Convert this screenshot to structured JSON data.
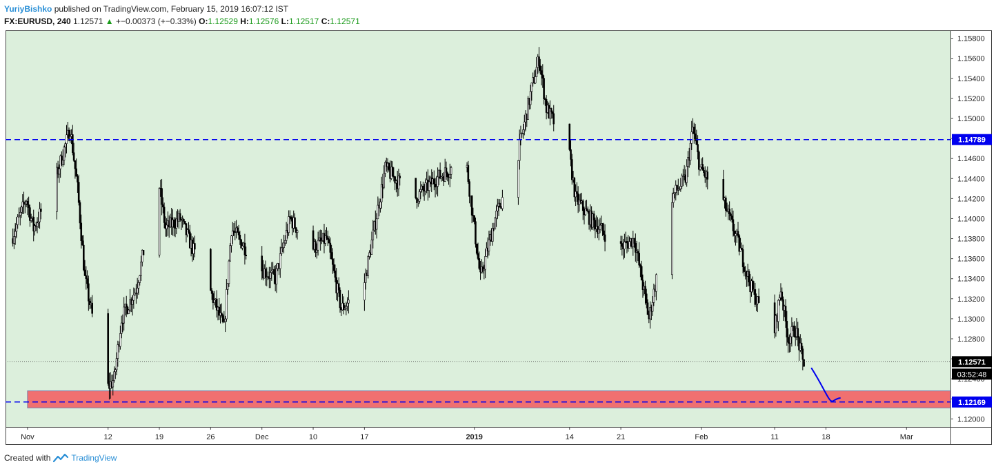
{
  "header": {
    "author": "YuriyBishko",
    "published_text": "published on TradingView.com, February 15, 2019 16:07:12 IST",
    "symbol": "FX:EURUSD",
    "interval": "240",
    "last": "1.12571",
    "change": "+−0.00373 (+−0.33%)",
    "o_label": "O:",
    "o": "1.12529",
    "h_label": "H:",
    "h": "1.12576",
    "l_label": "L:",
    "l": "1.12517",
    "c_label": "C:",
    "c": "1.12571"
  },
  "footer": {
    "created_with": "Created with",
    "brand": "TradingView"
  },
  "colors": {
    "chart_bg": "#dcefdc",
    "candle": "#000000",
    "resistance_line": "#0000ee",
    "support_zone": "#f07070",
    "projection": "#0000ee"
  },
  "chart_data": {
    "type": "candlestick",
    "symbol": "FX:EURUSD",
    "interval": "240",
    "ylim": [
      1.1192,
      1.1588
    ],
    "y_ticks": [
      "1.12000",
      "1.12200",
      "1.12400",
      "1.12600",
      "1.12800",
      "1.13000",
      "1.13200",
      "1.13400",
      "1.13600",
      "1.13800",
      "1.14000",
      "1.14200",
      "1.14400",
      "1.14600",
      "1.14800",
      "1.15000",
      "1.15200",
      "1.15400",
      "1.15600",
      "1.15800"
    ],
    "x_ticks": [
      {
        "label": "Nov",
        "date": "2018-11-01",
        "bold": false
      },
      {
        "label": "12",
        "date": "2018-11-12",
        "bold": false
      },
      {
        "label": "19",
        "date": "2018-11-19",
        "bold": false
      },
      {
        "label": "26",
        "date": "2018-11-26",
        "bold": false
      },
      {
        "label": "Dec",
        "date": "2018-12-03",
        "bold": false
      },
      {
        "label": "10",
        "date": "2018-12-10",
        "bold": false
      },
      {
        "label": "17",
        "date": "2018-12-17",
        "bold": false
      },
      {
        "label": "2019",
        "date": "2019-01-01",
        "bold": true
      },
      {
        "label": "14",
        "date": "2019-01-14",
        "bold": false
      },
      {
        "label": "21",
        "date": "2019-01-21",
        "bold": false
      },
      {
        "label": "Feb",
        "date": "2019-02-01",
        "bold": false
      },
      {
        "label": "11",
        "date": "2019-02-11",
        "bold": false
      },
      {
        "label": "18",
        "date": "2019-02-18",
        "bold": false
      },
      {
        "label": "Mar",
        "date": "2019-03-01",
        "bold": false
      }
    ],
    "price_path": [
      [
        "2018-10-30",
        1.138
      ],
      [
        "2018-11-01",
        1.142
      ],
      [
        "2018-11-02",
        1.139
      ],
      [
        "2018-11-05",
        1.144
      ],
      [
        "2018-11-07",
        1.149
      ],
      [
        "2018-11-08",
        1.143
      ],
      [
        "2018-11-09",
        1.134
      ],
      [
        "2018-11-12",
        1.123
      ],
      [
        "2018-11-13",
        1.124
      ],
      [
        "2018-11-14",
        1.13
      ],
      [
        "2018-11-16",
        1.133
      ],
      [
        "2018-11-19",
        1.144
      ],
      [
        "2018-11-20",
        1.139
      ],
      [
        "2018-11-22",
        1.14
      ],
      [
        "2018-11-26",
        1.133
      ],
      [
        "2018-11-28",
        1.129
      ],
      [
        "2018-11-29",
        1.139
      ],
      [
        "2018-12-03",
        1.135
      ],
      [
        "2018-12-05",
        1.134
      ],
      [
        "2018-12-07",
        1.14
      ],
      [
        "2018-12-10",
        1.137
      ],
      [
        "2018-12-12",
        1.138
      ],
      [
        "2018-12-14",
        1.131
      ],
      [
        "2018-12-17",
        1.133
      ],
      [
        "2018-12-20",
        1.145
      ],
      [
        "2018-12-24",
        1.142
      ],
      [
        "2018-12-27",
        1.144
      ],
      [
        "2018-12-31",
        1.146
      ],
      [
        "2019-01-02",
        1.134
      ],
      [
        "2019-01-04",
        1.14
      ],
      [
        "2019-01-07",
        1.146
      ],
      [
        "2019-01-09",
        1.153
      ],
      [
        "2019-01-10",
        1.156
      ],
      [
        "2019-01-11",
        1.151
      ],
      [
        "2019-01-14",
        1.147
      ],
      [
        "2019-01-15",
        1.142
      ],
      [
        "2019-01-17",
        1.14
      ],
      [
        "2019-01-21",
        1.137
      ],
      [
        "2019-01-23",
        1.138
      ],
      [
        "2019-01-25",
        1.13
      ],
      [
        "2019-01-28",
        1.142
      ],
      [
        "2019-01-30",
        1.144
      ],
      [
        "2019-01-31",
        1.149
      ],
      [
        "2019-02-01",
        1.145
      ],
      [
        "2019-02-04",
        1.142
      ],
      [
        "2019-02-06",
        1.138
      ],
      [
        "2019-02-08",
        1.133
      ],
      [
        "2019-02-11",
        1.128
      ],
      [
        "2019-02-12",
        1.133
      ],
      [
        "2019-02-13",
        1.128
      ],
      [
        "2019-02-14",
        1.129
      ],
      [
        "2019-02-15",
        1.1257
      ]
    ],
    "horizontal_lines": [
      {
        "price": 1.14789,
        "label": "1.14789",
        "style": "dashed",
        "color": "#0000ee"
      },
      {
        "price": 1.12169,
        "label": "1.12169",
        "style": "dashed",
        "color": "#0000ee"
      },
      {
        "price": 1.12571,
        "label": "1.12571",
        "style": "dotted",
        "color": "#555555"
      }
    ],
    "current_price_label": "1.12571",
    "countdown_label": "03:52:48",
    "support_zone": {
      "from": 1.1211,
      "to": 1.1228,
      "color": "#f07070"
    },
    "projection": [
      [
        "2019-02-16",
        1.1251
      ],
      [
        "2019-02-18",
        1.1228
      ],
      [
        "2019-02-19",
        1.1218
      ],
      [
        "2019-02-20",
        1.1221
      ]
    ]
  }
}
